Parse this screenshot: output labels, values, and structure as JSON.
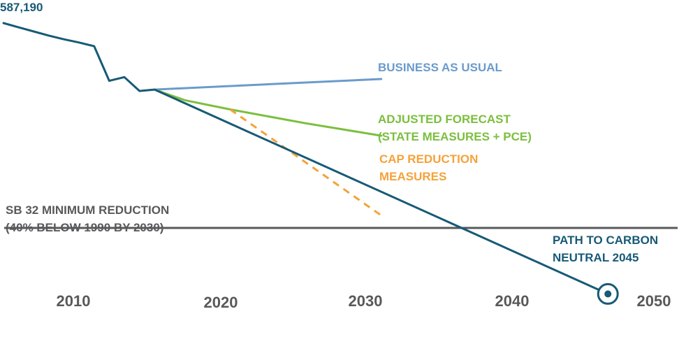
{
  "chart_data": {
    "type": "line",
    "title": "",
    "xlabel": "",
    "ylabel": "",
    "x_ticks": [
      "2010",
      "2020",
      "2030",
      "2040",
      "2050"
    ],
    "xlim": [
      2005,
      2051
    ],
    "ylim": [
      -10000,
      587190
    ],
    "start_label": "587,190",
    "threshold": {
      "label_lines": [
        "SB 32 MINIMUM REDUCTION",
        "(40% BELOW 1990 BY 2030)"
      ],
      "value": 143000,
      "color": "#58595b"
    },
    "series": [
      {
        "key": "historical",
        "name": "",
        "color": "#175a76",
        "dashed": false,
        "x": [
          2005,
          2006,
          2007,
          2008,
          2009,
          2010,
          2011,
          2012,
          2013,
          2014,
          2015
        ],
        "y": [
          587190,
          578000,
          569000,
          560000,
          552000,
          545000,
          537000,
          462000,
          470000,
          440000,
          443000
        ]
      },
      {
        "key": "bau",
        "name": "",
        "label_lines": [
          "BUSINESS AS USUAL"
        ],
        "color": "#6a9bcc",
        "dashed": false,
        "x": [
          2015,
          2030
        ],
        "y": [
          443000,
          466000
        ]
      },
      {
        "key": "adjusted",
        "name": "",
        "label_lines": [
          "ADJUSTED FORECAST",
          "(STATE MEASURES + PCE)"
        ],
        "color": "#7bbf3e",
        "dashed": false,
        "x": [
          2015,
          2017,
          2020,
          2025,
          2030
        ],
        "y": [
          443000,
          420000,
          400000,
          370000,
          343000
        ]
      },
      {
        "key": "cap",
        "name": "",
        "label_lines": [
          "CAP REDUCTION",
          "MEASURES"
        ],
        "color": "#f4a23a",
        "dashed": true,
        "x": [
          2020,
          2030
        ],
        "y": [
          400000,
          170000
        ]
      },
      {
        "key": "path",
        "name": "",
        "label_lines": [
          "PATH TO CARBON",
          "NEUTRAL 2045"
        ],
        "color": "#175a76",
        "dashed": false,
        "x": [
          2015,
          2045
        ],
        "y": [
          443000,
          0
        ]
      }
    ],
    "endpoint": {
      "x": 2045,
      "y": 0,
      "color": "#175a76"
    },
    "grid": false,
    "legend": "none"
  }
}
